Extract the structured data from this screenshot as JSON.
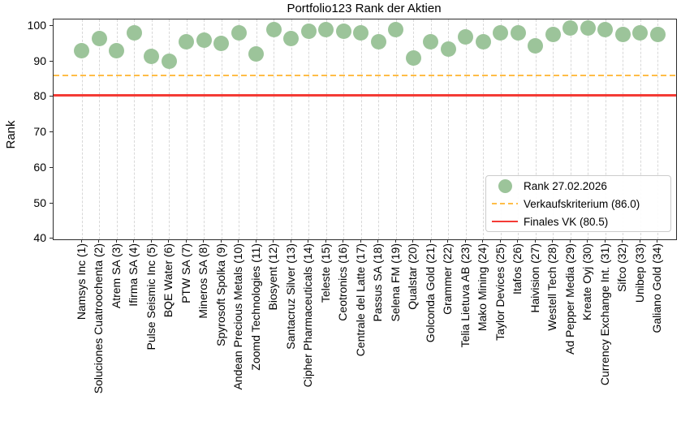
{
  "title": "Portfolio123 Rank der Aktien",
  "ylabel": "Rank",
  "colors": {
    "dot_green": "#9cc49a",
    "sell_orange": "#ffbd47",
    "final_red": "#f43b35",
    "grid_gray": "#d8d8d8"
  },
  "legend": {
    "items": [
      {
        "marker": "dot",
        "label": "Rank 27.02.2026"
      },
      {
        "marker": "dashed",
        "label": "Verkaufskriterium (86.0)"
      },
      {
        "marker": "solid",
        "label": "Finales VK (80.5)"
      }
    ]
  },
  "chart_data": {
    "type": "scatter",
    "title": "Portfolio123 Rank der Aktien",
    "xlabel": "",
    "ylabel": "Rank",
    "yticks": [
      40,
      50,
      60,
      70,
      80,
      90,
      100
    ],
    "ylim": [
      39.5,
      102.3
    ],
    "grid": "vertical-dashed-only",
    "legend_position": "lower right",
    "categories": [
      "Namsys Inc (1)",
      "Soluciones Cuatroochenta (2)",
      "Atrem SA (3)",
      "Ifirma SA (4)",
      "Pulse Seismic Inc (5)",
      "BQE Water (6)",
      "PTW SA (7)",
      "Mineros SA (8)",
      "Spyrosoft Spolka (9)",
      "Andean Precious Metals (10)",
      "Zoomd Technologies (11)",
      "Biosyent (12)",
      "Santacruz Silver (13)",
      "Cipher Pharmaceuticals (14)",
      "Teleste (15)",
      "Ceotronics (16)",
      "Centrale del Latte (17)",
      "Passus SA (18)",
      "Selena FM (19)",
      "Qualstar (20)",
      "Golconda Gold (21)",
      "Grammer (22)",
      "Telia Lietuva AB (23)",
      "Mako Mining (24)",
      "Taylor Devices (25)",
      "Itafos (26)",
      "Haivision (27)",
      "Westell Tech (28)",
      "Ad Pepper Media (29)",
      "Kreate Oyj (30)",
      "Currency Exchange Int. (31)",
      "Sifco (32)",
      "Unibep (33)",
      "Galiano Gold (34)"
    ],
    "series": [
      {
        "name": "Rank 27.02.2026",
        "values": [
          93,
          96.5,
          93,
          98,
          91.5,
          90,
          95.5,
          96,
          95,
          98,
          92,
          99,
          96.5,
          98.5,
          99,
          98.5,
          98,
          95.5,
          99,
          91,
          95.5,
          93.5,
          97,
          95.5,
          98,
          98,
          94.5,
          97.5,
          99.5,
          99.5,
          99,
          97.5,
          98,
          97.5
        ]
      }
    ],
    "hlines": [
      {
        "name": "Verkaufskriterium",
        "value": 86.0,
        "style": "dashed",
        "color": "#ffbd47"
      },
      {
        "name": "Finales VK",
        "value": 80.5,
        "style": "solid",
        "color": "#f43b35"
      }
    ]
  }
}
